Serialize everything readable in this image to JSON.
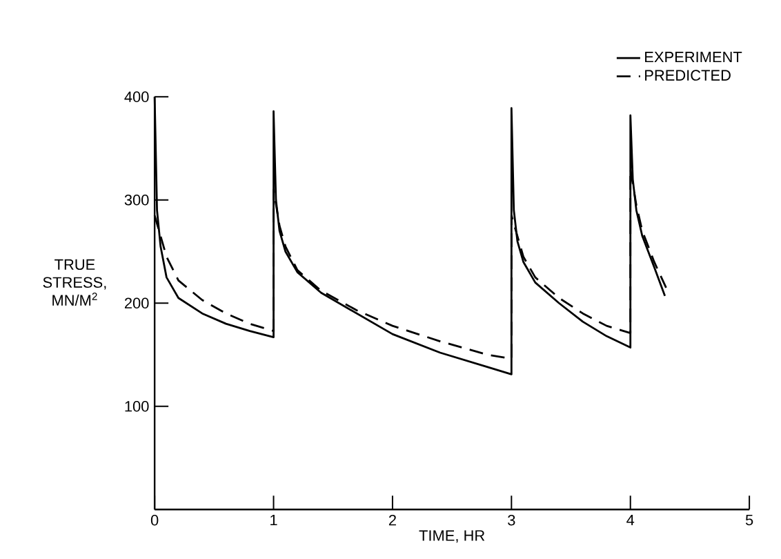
{
  "chart_data": {
    "type": "line",
    "xlabel": "TIME, HR",
    "ylabel": "TRUE STRESS, MN/M$^{2}$",
    "xlim": [
      0,
      5
    ],
    "ylim": [
      0,
      400
    ],
    "xticks": [
      0,
      1,
      2,
      3,
      4,
      5
    ],
    "yticks": [
      100,
      200,
      300,
      400
    ],
    "grid": false,
    "legend": "top right",
    "marker": "none",
    "series": [
      {
        "name": "EXPERIMENT",
        "color": "#000000",
        "line_style": "solid",
        "x": [
          0,
          0.02,
          0.05,
          0.1,
          0.2,
          0.4,
          0.6,
          0.8,
          1.0,
          1.0,
          1.02,
          1.05,
          1.1,
          1.2,
          1.4,
          1.7,
          2.0,
          2.4,
          2.8,
          3.0,
          3.0,
          3.02,
          3.05,
          3.1,
          3.2,
          3.4,
          3.6,
          3.8,
          4.0,
          4.0,
          4.02,
          4.05,
          4.1,
          4.2,
          4.29
        ],
        "values": [
          400,
          290,
          255,
          225,
          205,
          190,
          180,
          173,
          167,
          386,
          300,
          270,
          250,
          230,
          210,
          190,
          170,
          152,
          138,
          131,
          389,
          290,
          260,
          240,
          220,
          200,
          182,
          168,
          157,
          382,
          320,
          290,
          265,
          235,
          207
        ]
      },
      {
        "name": "PREDICTED",
        "color": "#000000",
        "line_style": "dashed",
        "x": [
          0,
          0.05,
          0.1,
          0.2,
          0.4,
          0.6,
          0.8,
          1.0,
          1.0,
          1.05,
          1.1,
          1.2,
          1.4,
          1.7,
          2.0,
          2.4,
          2.8,
          3.0,
          3.0,
          3.05,
          3.1,
          3.2,
          3.4,
          3.6,
          3.8,
          4.0,
          4.0,
          4.05,
          4.1,
          4.2,
          4.3
        ],
        "values": [
          285,
          265,
          245,
          222,
          203,
          190,
          180,
          173,
          310,
          275,
          255,
          232,
          212,
          193,
          178,
          163,
          150,
          146,
          285,
          265,
          245,
          225,
          205,
          190,
          178,
          171,
          330,
          295,
          270,
          240,
          215
        ]
      }
    ]
  }
}
